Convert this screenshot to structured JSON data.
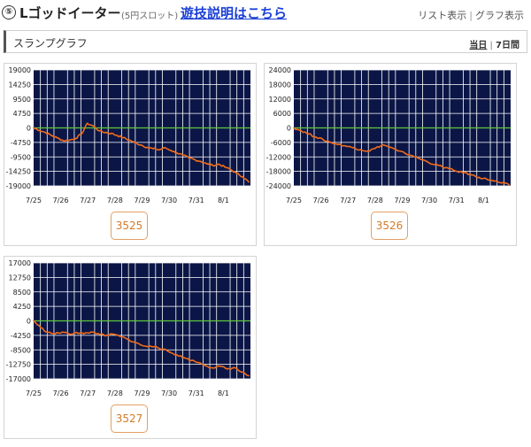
{
  "header": {
    "number": "⑤",
    "title": "Lゴッドイーター",
    "subtitle": "(5円スロット)",
    "help_link": "遊技説明はこちら",
    "view_links": [
      "リスト表示",
      "グラフ表示"
    ]
  },
  "section": {
    "title": "スランプグラフ",
    "period_today": "当日",
    "period_week": "7日間"
  },
  "colors": {
    "plot_bg": "#0b1646",
    "grid": "#ffffff",
    "zero_line": "#5dc83a",
    "series": "#f06a1a",
    "button_border": "#e3a063",
    "button_text": "#d47a2a"
  },
  "chart_data": [
    {
      "type": "line",
      "machine_number": "3525",
      "yticks": [
        19000,
        14250,
        9500,
        4750,
        0,
        -4750,
        -9500,
        -14250,
        -19000
      ],
      "ylim": [
        -19000,
        19000
      ],
      "x_labels": [
        "7/25",
        "7/26",
        "7/27",
        "7/28",
        "7/29",
        "7/30",
        "7/31",
        "8/1"
      ],
      "values": [
        0,
        -800,
        -1500,
        -2500,
        -3300,
        -4200,
        -4000,
        -3500,
        -2000,
        1500,
        600,
        -1000,
        -1500,
        -1800,
        -2500,
        -3200,
        -4000,
        -4900,
        -5600,
        -6400,
        -6800,
        -7200,
        -6500,
        -7400,
        -8200,
        -9000,
        -9800,
        -10400,
        -11000,
        -11800,
        -12300,
        -11900,
        -12800,
        -13700,
        -14900,
        -16000,
        -17700
      ]
    },
    {
      "type": "line",
      "machine_number": "3526",
      "yticks": [
        24000,
        18000,
        12000,
        6000,
        0,
        -6000,
        -12000,
        -18000,
        -24000
      ],
      "ylim": [
        -24000,
        24000
      ],
      "x_labels": [
        "7/25",
        "7/26",
        "7/27",
        "7/28",
        "7/29",
        "7/30",
        "7/31",
        "8/1"
      ],
      "values": [
        0,
        -1200,
        -2500,
        -3800,
        -5000,
        -6000,
        -6800,
        -7500,
        -8200,
        -9000,
        -9600,
        -8400,
        -7000,
        -8000,
        -9500,
        -10500,
        -11500,
        -12800,
        -14000,
        -15200,
        -16000,
        -17000,
        -18000,
        -18500,
        -19500,
        -20500,
        -21200,
        -22000,
        -22800,
        -23500
      ]
    },
    {
      "type": "line",
      "machine_number": "3527",
      "yticks": [
        17000,
        12750,
        8500,
        4250,
        0,
        -4250,
        -8500,
        -12750,
        -17000
      ],
      "ylim": [
        -17000,
        17000
      ],
      "x_labels": [
        "7/25",
        "7/26",
        "7/27",
        "7/28",
        "7/29",
        "7/30",
        "7/31",
        "8/1"
      ],
      "values": [
        0,
        -2000,
        -3400,
        -3800,
        -3300,
        -3900,
        -3400,
        -3800,
        -3300,
        -3700,
        -4400,
        -3900,
        -4500,
        -5300,
        -6200,
        -7100,
        -7600,
        -7400,
        -8300,
        -9200,
        -10000,
        -10800,
        -11600,
        -12200,
        -13100,
        -13800,
        -13300,
        -14100,
        -13700,
        -15000,
        -16100
      ]
    }
  ]
}
